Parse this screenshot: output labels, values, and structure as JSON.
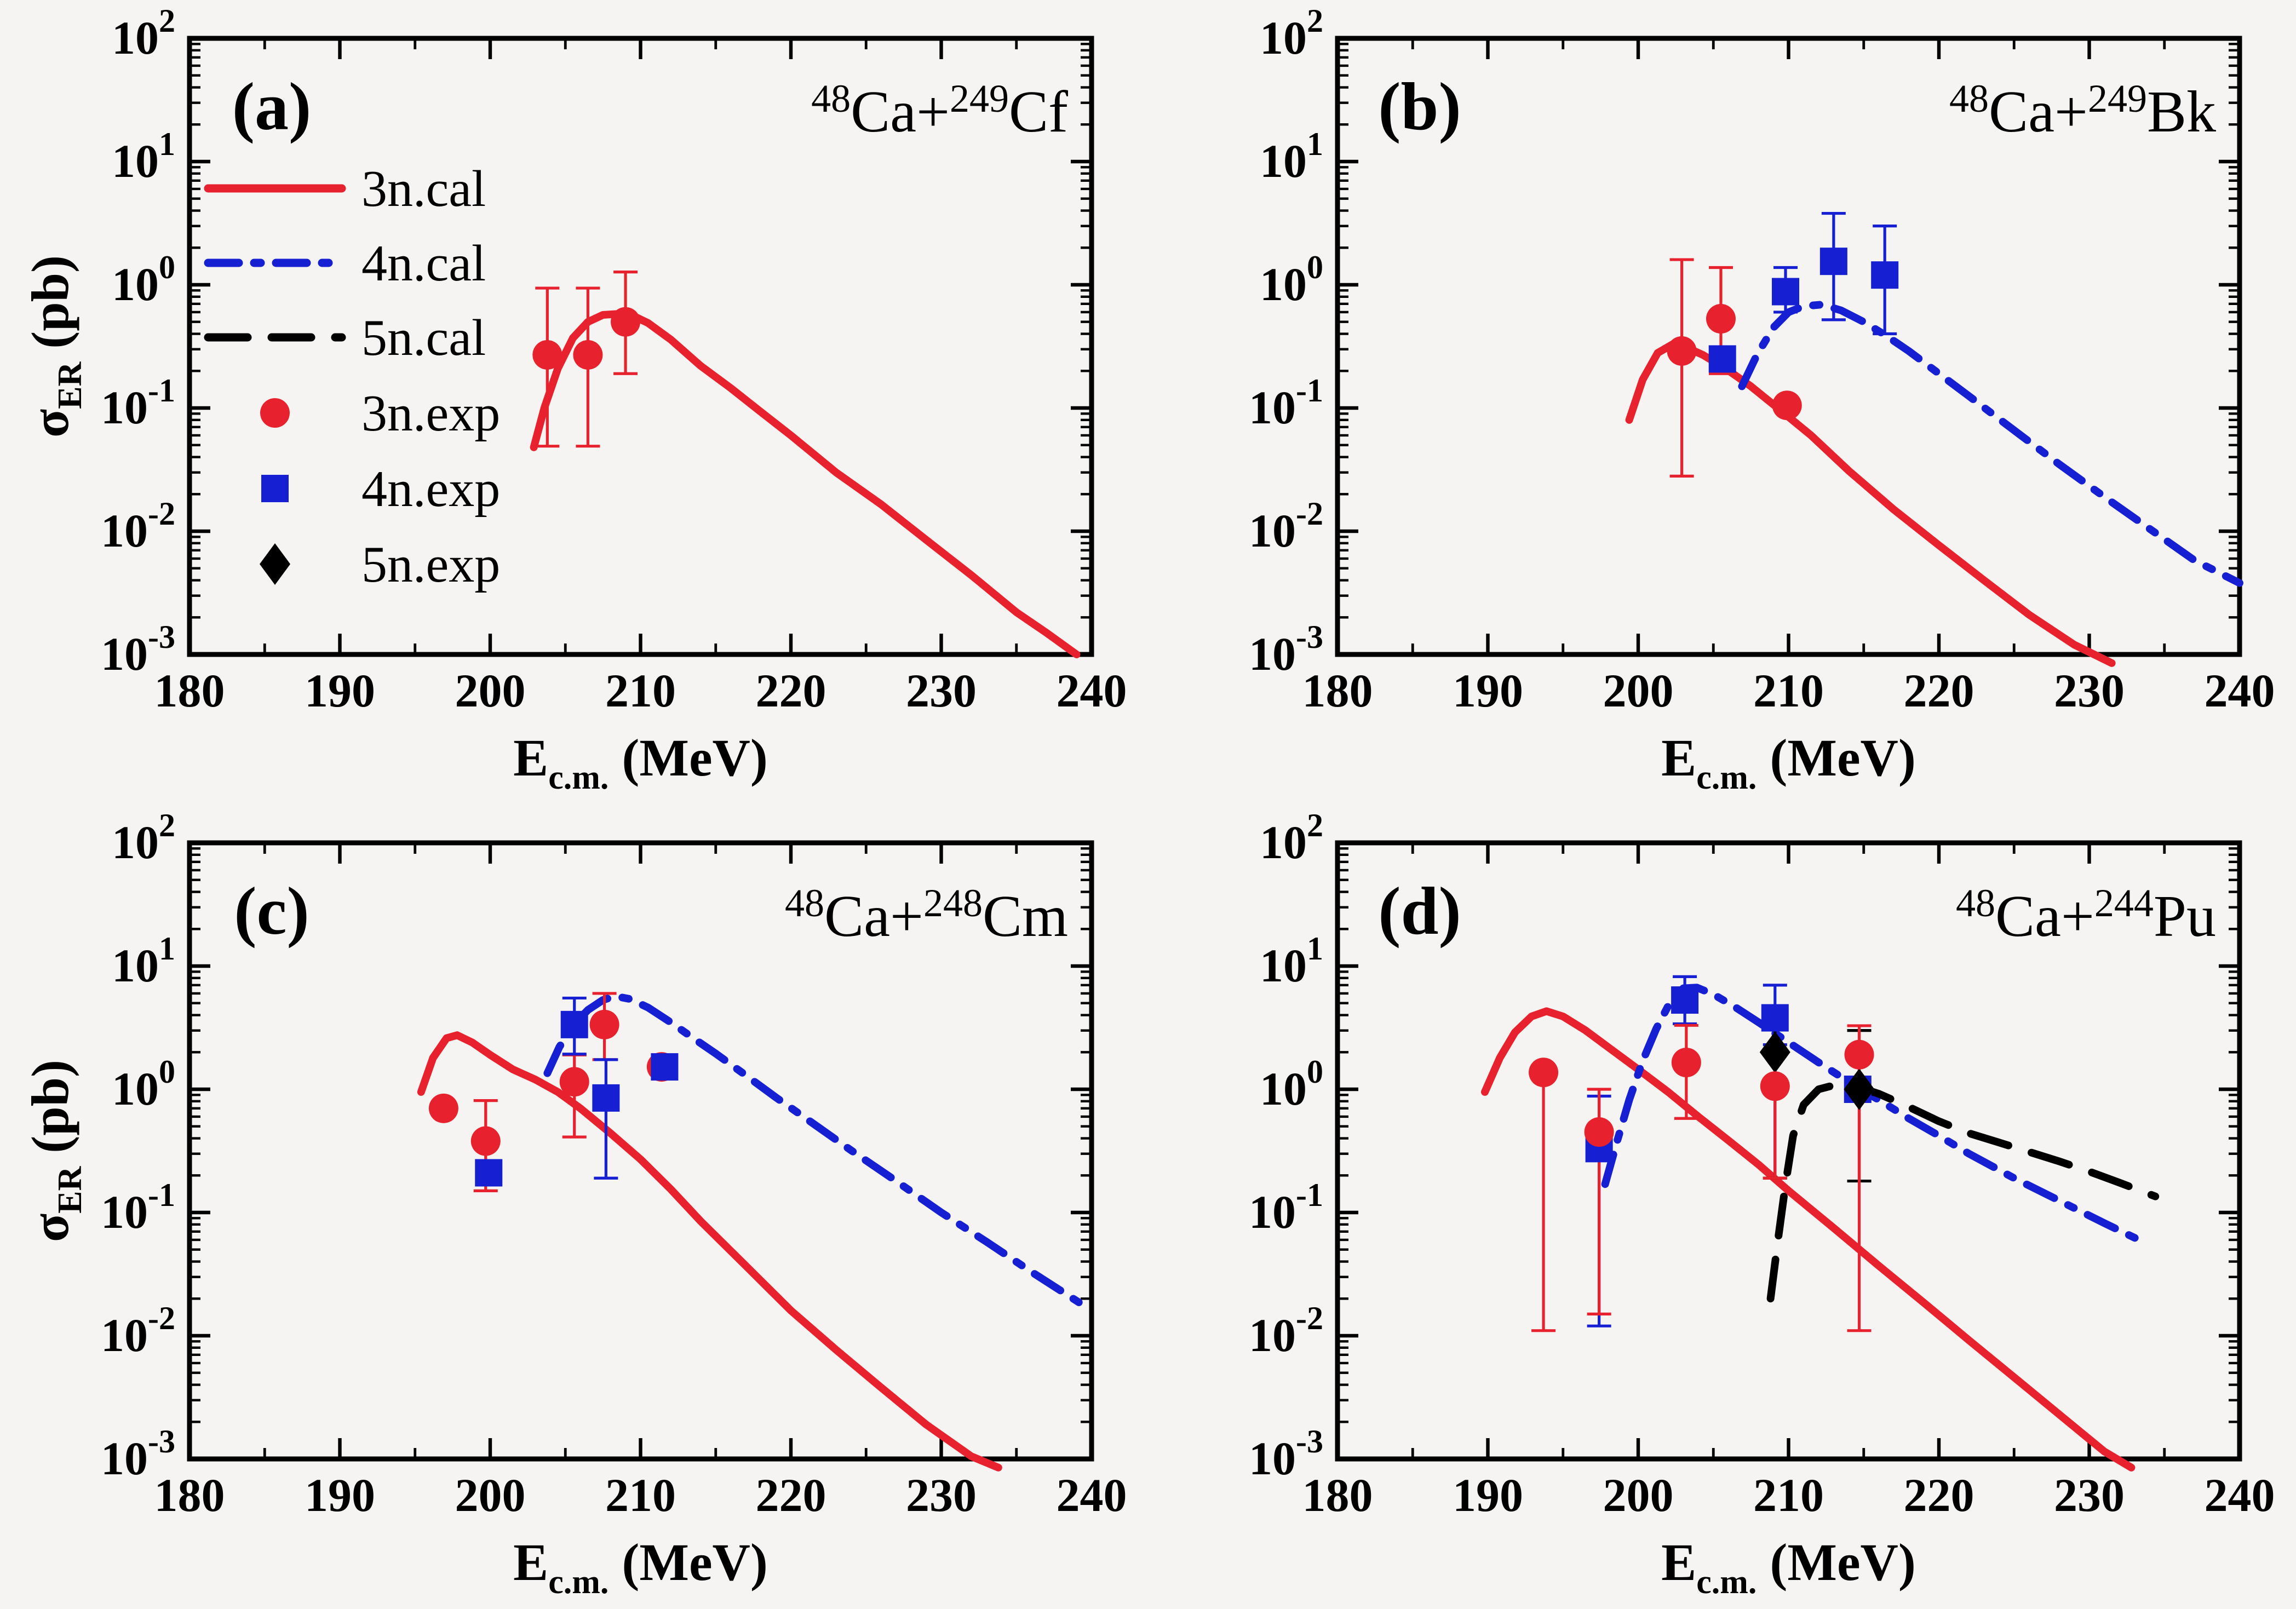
{
  "figure": {
    "background": "#f5f4f2",
    "series_styles": {
      "3n": {
        "color": "#e8212e",
        "dash": "solid"
      },
      "4n": {
        "color": "#1620d2",
        "dash": "dashdot"
      },
      "5n": {
        "color": "#000000",
        "dash": "dash"
      }
    },
    "axis": {
      "x_title": {
        "base": "E",
        "sub": "c.m.",
        "suffix": " (MeV)"
      },
      "y_title": {
        "base": "σ",
        "sub": "ER",
        "suffix": " (pb)"
      },
      "xlim": [
        180,
        240
      ],
      "x_major": [
        180,
        190,
        200,
        210,
        220,
        230,
        240
      ],
      "x_minor_step": 5,
      "y_exponents": [
        2,
        1,
        0,
        -1,
        -2,
        -3
      ],
      "y_tick_base": "10",
      "grid": "off"
    },
    "legend": {
      "position": "upper-left-panel-a",
      "items": [
        {
          "label": "3n.cal",
          "kind": "line",
          "series": "3n"
        },
        {
          "label": "4n.cal",
          "kind": "line",
          "series": "4n"
        },
        {
          "label": "5n.cal",
          "kind": "line",
          "series": "5n"
        },
        {
          "label": "3n.exp",
          "kind": "marker",
          "marker": "circle",
          "series": "3n"
        },
        {
          "label": "4n.exp",
          "kind": "marker",
          "marker": "square",
          "series": "4n"
        },
        {
          "label": "5n.exp",
          "kind": "marker",
          "marker": "diamond",
          "series": "5n"
        }
      ]
    }
  },
  "chart_data": [
    {
      "type": "line",
      "panel_label": "(a)",
      "reaction": {
        "sup1": "48",
        "el1": "Ca",
        "plus": "+",
        "sup2": "249",
        "el2": "Cf"
      },
      "xlabel": "E c.m. (MeV)",
      "ylabel": "sigma_ER (pb)",
      "ylim_log": [
        0.001,
        100
      ],
      "show_y_title": true,
      "show_legend": true,
      "curves": [
        {
          "id": "3n.cal",
          "series": "3n",
          "points": [
            [
              202.9,
              0.048
            ],
            [
              203.6,
              0.1
            ],
            [
              204.5,
              0.21
            ],
            [
              205.5,
              0.37
            ],
            [
              206.5,
              0.5
            ],
            [
              207.5,
              0.57
            ],
            [
              208.5,
              0.58
            ],
            [
              209.5,
              0.56
            ],
            [
              210.5,
              0.49
            ],
            [
              212,
              0.36
            ],
            [
              214,
              0.22
            ],
            [
              216,
              0.145
            ],
            [
              218,
              0.093
            ],
            [
              220,
              0.06
            ],
            [
              223,
              0.03
            ],
            [
              226,
              0.0165
            ],
            [
              229,
              0.0085
            ],
            [
              232,
              0.0044
            ],
            [
              235,
              0.0022
            ],
            [
              237,
              0.0015
            ],
            [
              239,
              0.001
            ]
          ]
        }
      ],
      "exp": [
        {
          "id": "3n.exp",
          "series": "3n",
          "marker": "circle",
          "points": [
            {
              "x": 203.8,
              "y": 0.27,
              "lo": 0.049,
              "hi": 0.94
            },
            {
              "x": 206.5,
              "y": 0.27,
              "lo": 0.049,
              "hi": 0.94
            },
            {
              "x": 209.0,
              "y": 0.5,
              "lo": 0.19,
              "hi": 1.27
            }
          ]
        }
      ]
    },
    {
      "type": "line",
      "panel_label": "(b)",
      "reaction": {
        "sup1": "48",
        "el1": "Ca",
        "plus": "+",
        "sup2": "249",
        "el2": "Bk"
      },
      "xlabel": "E c.m. (MeV)",
      "ylabel": "sigma_ER (pb)",
      "ylim_log": [
        0.001,
        100
      ],
      "show_y_title": false,
      "show_legend": false,
      "curves": [
        {
          "id": "3n.cal",
          "series": "3n",
          "points": [
            [
              199.4,
              0.08
            ],
            [
              200.3,
              0.17
            ],
            [
              201.3,
              0.28
            ],
            [
              202.3,
              0.33
            ],
            [
              203.2,
              0.31
            ],
            [
              204.3,
              0.27
            ],
            [
              205.8,
              0.21
            ],
            [
              207.5,
              0.15
            ],
            [
              209.5,
              0.095
            ],
            [
              211.5,
              0.06
            ],
            [
              214,
              0.031
            ],
            [
              217,
              0.015
            ],
            [
              220,
              0.0077
            ],
            [
              223,
              0.004
            ],
            [
              226,
              0.0021
            ],
            [
              229,
              0.0012
            ],
            [
              231.5,
              0.00085
            ]
          ]
        },
        {
          "id": "4n.cal",
          "series": "4n",
          "points": [
            [
              206.9,
              0.15
            ],
            [
              207.9,
              0.27
            ],
            [
              209.0,
              0.45
            ],
            [
              210.0,
              0.6
            ],
            [
              211.0,
              0.67
            ],
            [
              212.2,
              0.69
            ],
            [
              213.5,
              0.62
            ],
            [
              215,
              0.5
            ],
            [
              216.5,
              0.385
            ],
            [
              218,
              0.29
            ],
            [
              220,
              0.19
            ],
            [
              222,
              0.125
            ],
            [
              225,
              0.066
            ],
            [
              228,
              0.035
            ],
            [
              231,
              0.019
            ],
            [
              234,
              0.0105
            ],
            [
              237,
              0.0058
            ],
            [
              240,
              0.0038
            ]
          ]
        }
      ],
      "exp": [
        {
          "id": "3n.exp",
          "series": "3n",
          "marker": "circle",
          "points": [
            {
              "x": 202.9,
              "y": 0.29,
              "lo": 0.028,
              "hi": 1.6
            },
            {
              "x": 205.5,
              "y": 0.53,
              "lo": 0.19,
              "hi": 1.38
            },
            {
              "x": 209.9,
              "y": 0.105
            }
          ]
        },
        {
          "id": "4n.exp",
          "series": "4n",
          "marker": "square",
          "points": [
            {
              "x": 205.6,
              "y": 0.25
            },
            {
              "x": 209.8,
              "y": 0.88,
              "lo": 0.6,
              "hi": 1.38
            },
            {
              "x": 213.0,
              "y": 1.55,
              "lo": 0.52,
              "hi": 3.8
            },
            {
              "x": 216.4,
              "y": 1.2,
              "lo": 0.4,
              "hi": 3.0
            }
          ]
        }
      ]
    },
    {
      "type": "line",
      "panel_label": "(c)",
      "reaction": {
        "sup1": "48",
        "el1": "Ca",
        "plus": "+",
        "sup2": "248",
        "el2": "Cm"
      },
      "xlabel": "E c.m. (MeV)",
      "ylabel": "sigma_ER (pb)",
      "ylim_log": [
        0.001,
        100
      ],
      "show_y_title": true,
      "show_legend": false,
      "curves": [
        {
          "id": "3n.cal",
          "series": "3n",
          "points": [
            [
              195.4,
              0.95
            ],
            [
              196.2,
              1.8
            ],
            [
              197.1,
              2.6
            ],
            [
              197.8,
              2.75
            ],
            [
              198.8,
              2.4
            ],
            [
              200,
              1.9
            ],
            [
              201.5,
              1.45
            ],
            [
              203,
              1.2
            ],
            [
              204.5,
              0.95
            ],
            [
              206,
              0.7
            ],
            [
              208,
              0.44
            ],
            [
              210,
              0.27
            ],
            [
              212,
              0.155
            ],
            [
              214,
              0.085
            ],
            [
              217,
              0.037
            ],
            [
              220,
              0.016
            ],
            [
              223,
              0.0077
            ],
            [
              226,
              0.0038
            ],
            [
              229,
              0.0019
            ],
            [
              232,
              0.00105
            ],
            [
              233.8,
              0.00085
            ]
          ]
        },
        {
          "id": "4n.cal",
          "series": "4n",
          "points": [
            [
              203.8,
              1.35
            ],
            [
              204.6,
              2.2
            ],
            [
              205.5,
              3.3
            ],
            [
              206.5,
              4.4
            ],
            [
              207.5,
              5.3
            ],
            [
              208.3,
              5.7
            ],
            [
              209.3,
              5.4
            ],
            [
              210.5,
              4.6
            ],
            [
              212,
              3.5
            ],
            [
              213.5,
              2.6
            ],
            [
              215,
              1.95
            ],
            [
              217,
              1.3
            ],
            [
              219,
              0.86
            ],
            [
              221,
              0.58
            ],
            [
              224,
              0.32
            ],
            [
              227,
              0.18
            ],
            [
              230,
              0.1
            ],
            [
              233,
              0.058
            ],
            [
              236,
              0.033
            ],
            [
              240,
              0.016
            ]
          ]
        }
      ],
      "exp": [
        {
          "id": "3n.exp",
          "series": "3n",
          "marker": "circle",
          "points": [
            {
              "x": 196.9,
              "y": 0.7
            },
            {
              "x": 199.7,
              "y": 0.38,
              "lo": 0.15,
              "hi": 0.81
            },
            {
              "x": 205.6,
              "y": 1.15,
              "lo": 0.41,
              "hi": 1.9
            },
            {
              "x": 207.6,
              "y": 3.35,
              "lo": 1.74,
              "hi": 6.0
            },
            {
              "x": 211.4,
              "y": 1.52
            }
          ]
        },
        {
          "id": "4n.exp",
          "series": "4n",
          "marker": "square",
          "points": [
            {
              "x": 199.9,
              "y": 0.21
            },
            {
              "x": 205.6,
              "y": 3.35,
              "lo": 1.93,
              "hi": 5.5
            },
            {
              "x": 207.7,
              "y": 0.85,
              "lo": 0.19,
              "hi": 1.74
            },
            {
              "x": 211.6,
              "y": 1.52
            }
          ]
        }
      ]
    },
    {
      "type": "line",
      "panel_label": "(d)",
      "reaction": {
        "sup1": "48",
        "el1": "Ca",
        "plus": "+",
        "sup2": "244",
        "el2": "Pu"
      },
      "xlabel": "E c.m. (MeV)",
      "ylabel": "sigma_ER (pb)",
      "ylim_log": [
        0.001,
        100
      ],
      "show_y_title": false,
      "show_legend": false,
      "curves": [
        {
          "id": "3n.cal",
          "series": "3n",
          "points": [
            [
              189.8,
              0.95
            ],
            [
              190.8,
              1.8
            ],
            [
              191.8,
              2.9
            ],
            [
              192.9,
              3.9
            ],
            [
              193.9,
              4.3
            ],
            [
              195,
              3.9
            ],
            [
              196.5,
              3.0
            ],
            [
              198,
              2.2
            ],
            [
              200,
              1.45
            ],
            [
              202,
              0.95
            ],
            [
              204,
              0.6
            ],
            [
              206,
              0.385
            ],
            [
              208,
              0.245
            ],
            [
              210,
              0.15
            ],
            [
              213,
              0.075
            ],
            [
              216,
              0.037
            ],
            [
              219,
              0.0185
            ],
            [
              222,
              0.0092
            ],
            [
              225,
              0.0046
            ],
            [
              228,
              0.0023
            ],
            [
              231,
              0.00115
            ],
            [
              232.8,
              0.00085
            ]
          ]
        },
        {
          "id": "4n.cal",
          "series": "4n",
          "points": [
            [
              197.8,
              0.17
            ],
            [
              198.6,
              0.38
            ],
            [
              199.4,
              0.82
            ],
            [
              200.3,
              1.7
            ],
            [
              201.2,
              3.1
            ],
            [
              202.2,
              5.3
            ],
            [
              203.0,
              6.6
            ],
            [
              203.9,
              6.7
            ],
            [
              205,
              5.9
            ],
            [
              206.5,
              4.6
            ],
            [
              208,
              3.5
            ],
            [
              210,
              2.4
            ],
            [
              212,
              1.65
            ],
            [
              214,
              1.15
            ],
            [
              216,
              0.82
            ],
            [
              218,
              0.58
            ],
            [
              220,
              0.42
            ],
            [
              222,
              0.3
            ],
            [
              225,
              0.19
            ],
            [
              228,
              0.125
            ],
            [
              231,
              0.082
            ],
            [
              233.8,
              0.056
            ]
          ]
        },
        {
          "id": "5n.cal",
          "series": "5n",
          "points": [
            [
              208.8,
              0.02
            ],
            [
              209.3,
              0.06
            ],
            [
              209.8,
              0.17
            ],
            [
              210.3,
              0.42
            ],
            [
              211,
              0.75
            ],
            [
              212,
              1.0
            ],
            [
              213.3,
              1.1
            ],
            [
              214.5,
              1.05
            ],
            [
              216,
              0.92
            ],
            [
              218,
              0.72
            ],
            [
              220,
              0.55
            ],
            [
              222,
              0.44
            ],
            [
              224,
              0.37
            ],
            [
              226,
              0.31
            ],
            [
              228,
              0.26
            ],
            [
              230,
              0.215
            ],
            [
              232,
              0.175
            ],
            [
              234.4,
              0.135
            ]
          ]
        }
      ],
      "exp": [
        {
          "id": "4n.exp",
          "series": "4n",
          "marker": "square",
          "points": [
            {
              "x": 197.4,
              "y": 0.33,
              "lo": 0.012,
              "hi": 0.88
            },
            {
              "x": 203.1,
              "y": 5.3,
              "lo": 3.4,
              "hi": 8.2
            },
            {
              "x": 209.1,
              "y": 3.8,
              "lo": 2.3,
              "hi": 7.0
            },
            {
              "x": 214.6,
              "y": 1.0
            }
          ]
        },
        {
          "id": "5n.exp",
          "series": "5n",
          "marker": "diamond",
          "points": [
            {
              "x": 209.1,
              "y": 2.0,
              "lo": 0.19,
              "hi": 3.4
            },
            {
              "x": 214.7,
              "y": 1.0,
              "lo": 0.18,
              "hi": 3.0
            }
          ]
        },
        {
          "id": "3n.exp",
          "series": "3n",
          "marker": "circle",
          "points": [
            {
              "x": 193.7,
              "y": 1.37,
              "lo": 0.011
            },
            {
              "x": 197.4,
              "y": 0.45,
              "lo": 0.015,
              "hi": 1.0
            },
            {
              "x": 203.2,
              "y": 1.65,
              "lo": 0.58,
              "hi": 3.3
            },
            {
              "x": 209.1,
              "y": 1.06,
              "lo": 0.19,
              "hi": 2.0
            },
            {
              "x": 214.7,
              "y": 1.91,
              "lo": 0.011,
              "hi": 3.28
            }
          ]
        }
      ]
    }
  ]
}
